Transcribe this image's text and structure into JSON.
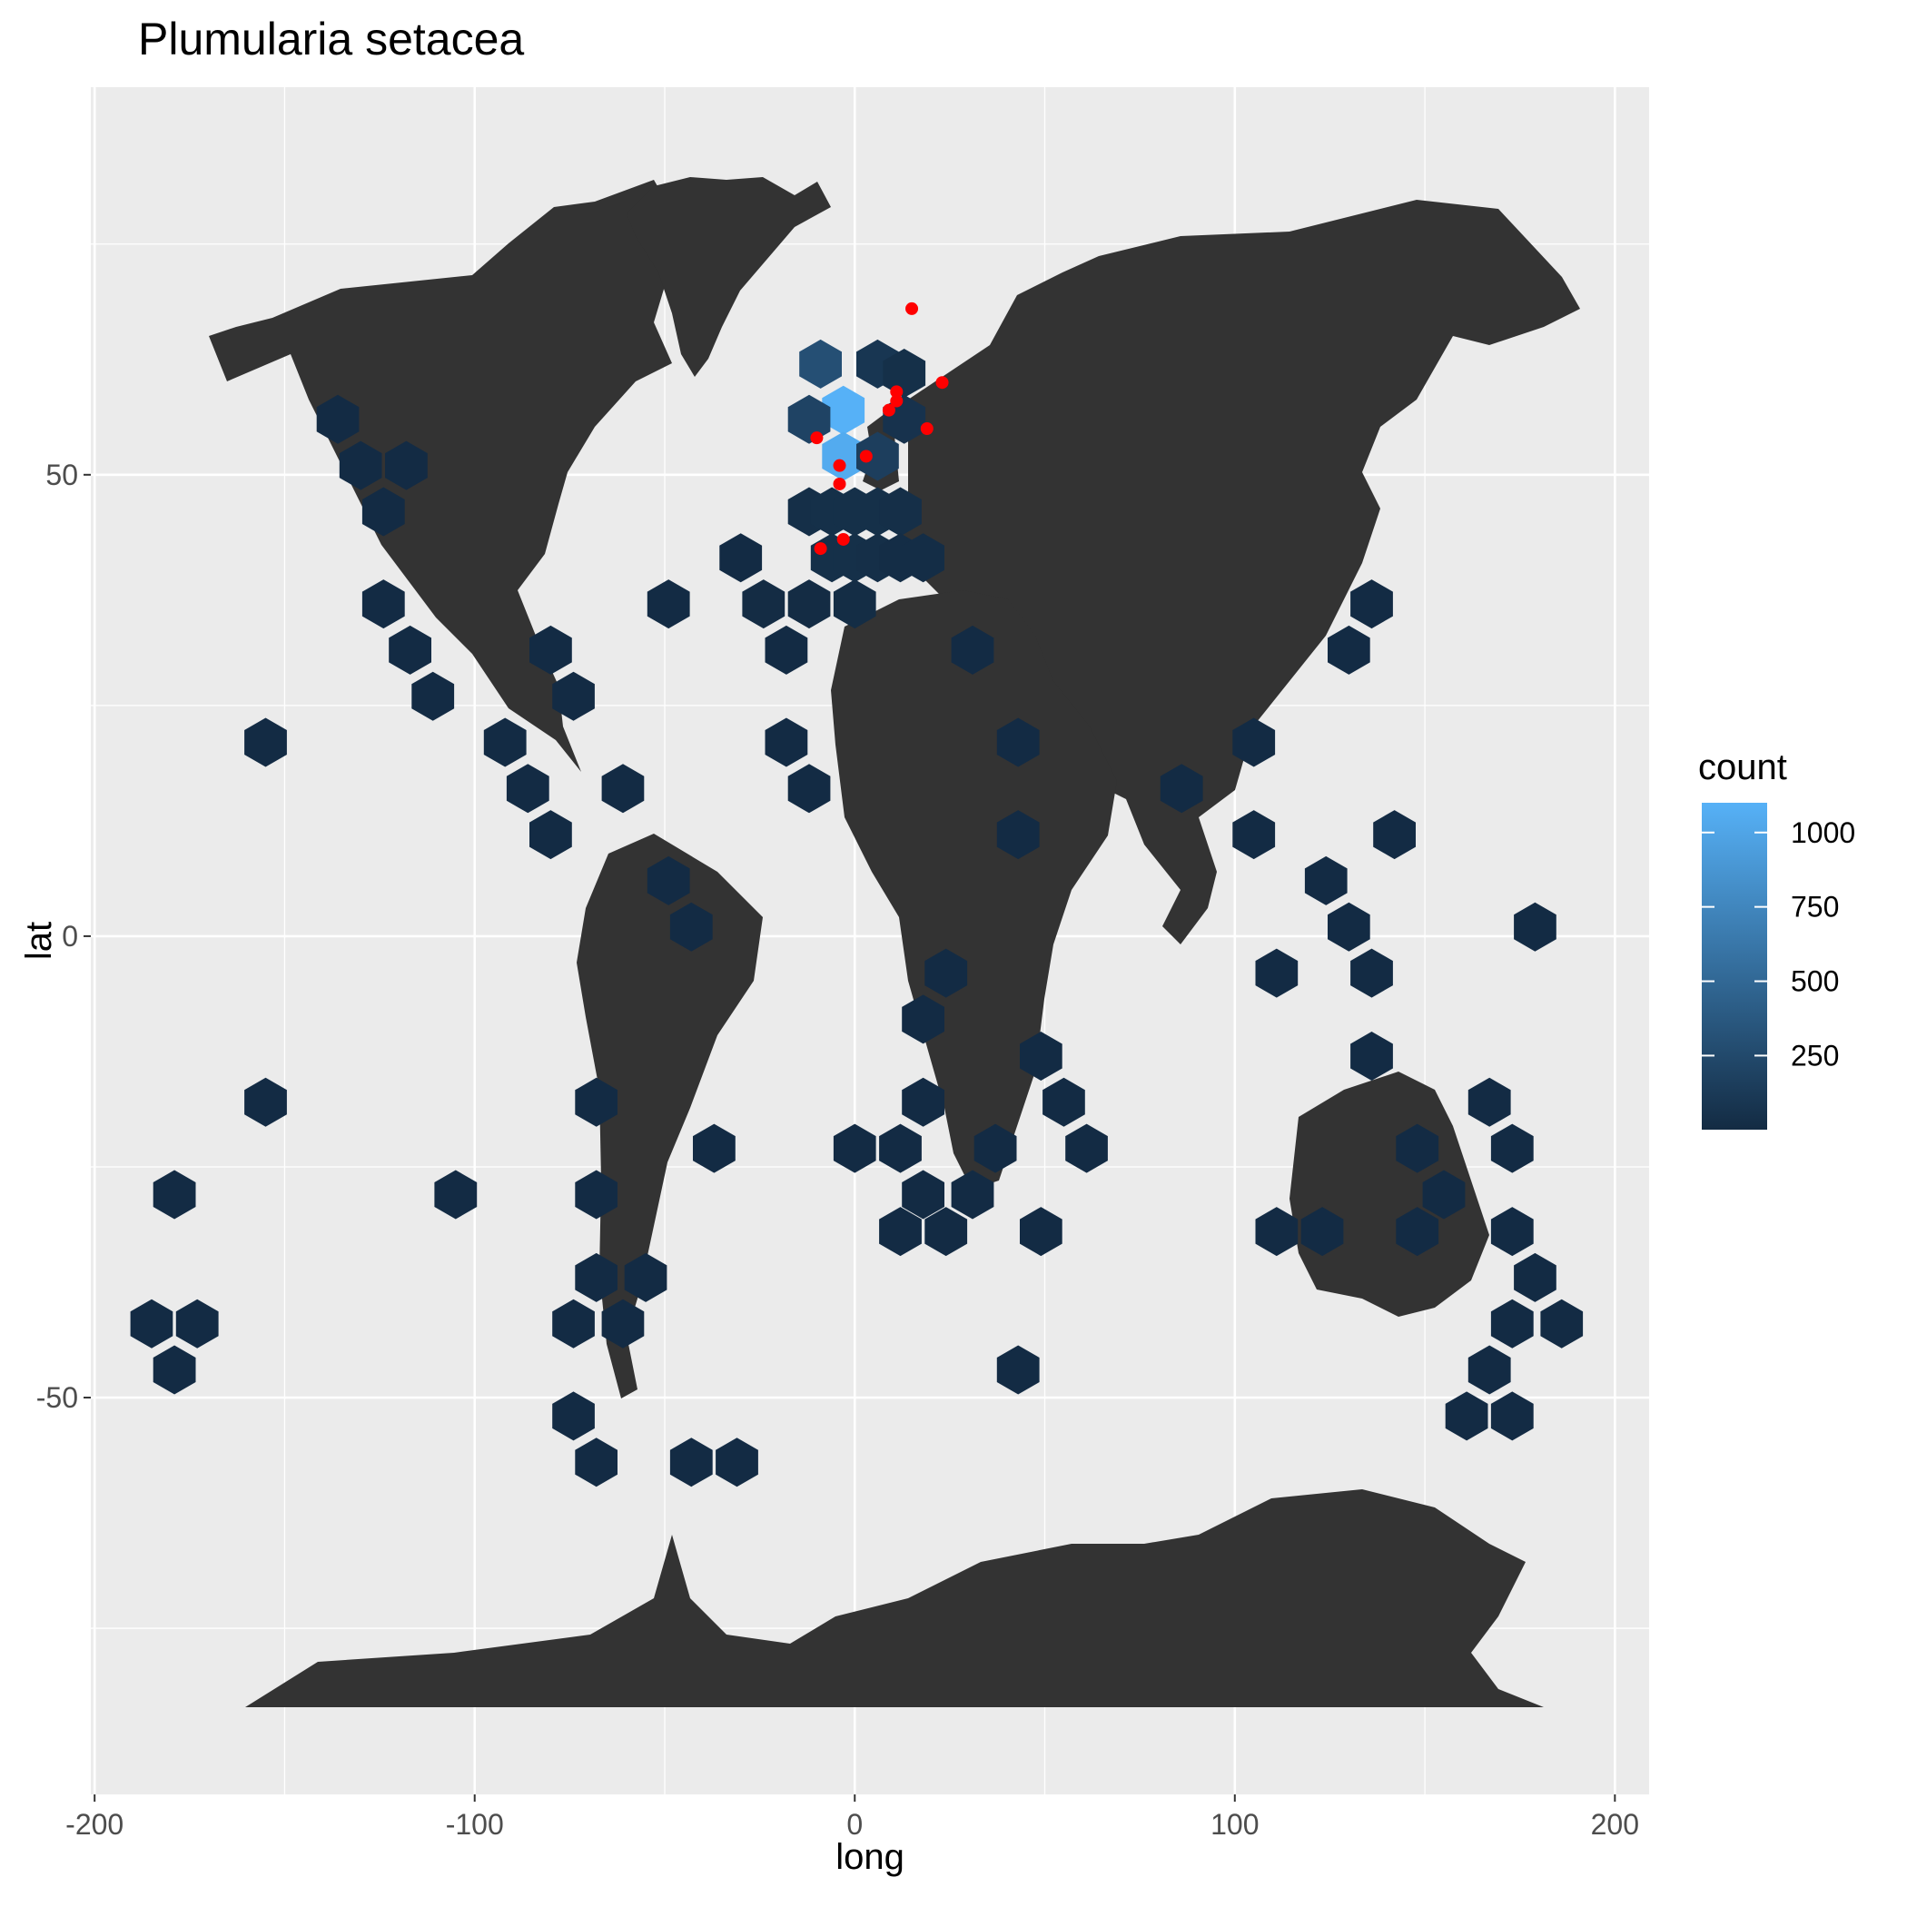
{
  "chart_data": {
    "type": "hexbin",
    "title": "Plumularia setacea",
    "xlabel": "long",
    "ylabel": "lat",
    "xlim": [
      -201,
      209
    ],
    "ylim": [
      -93,
      92
    ],
    "x_ticks": [
      -200,
      -100,
      0,
      100,
      200
    ],
    "x_tick_labels": [
      "-200",
      "-100",
      "0",
      "100",
      "200"
    ],
    "y_ticks": [
      -50,
      0,
      50
    ],
    "y_tick_labels": [
      "-50",
      "0",
      "50"
    ],
    "grid": true,
    "land_color": "#333333",
    "panel_color": "#ebebeb",
    "point_color": "#ff0000",
    "legend": {
      "title": "count",
      "position": "right",
      "breaks": [
        250,
        500,
        750,
        1000
      ],
      "break_labels": [
        "250",
        "500",
        "750",
        "1000"
      ],
      "range": [
        1,
        1100
      ],
      "low_color": "#132b43",
      "high_color": "#56b1f7"
    },
    "hexbins": [
      {
        "long": -3,
        "lat": 57,
        "count": 1100
      },
      {
        "long": -3,
        "lat": 52,
        "count": 1050
      },
      {
        "long": -9,
        "lat": 62,
        "count": 300
      },
      {
        "long": -12,
        "lat": 56,
        "count": 200
      },
      {
        "long": 6,
        "lat": 52,
        "count": 160
      },
      {
        "long": 6,
        "lat": 62,
        "count": 90
      },
      {
        "long": 13,
        "lat": 56,
        "count": 60
      },
      {
        "long": 13,
        "lat": 61,
        "count": 40
      },
      {
        "long": -12,
        "lat": 46,
        "count": 30
      },
      {
        "long": -6,
        "lat": 46,
        "count": 40
      },
      {
        "long": 0,
        "lat": 46,
        "count": 40
      },
      {
        "long": 6,
        "lat": 46,
        "count": 40
      },
      {
        "long": 12,
        "lat": 46,
        "count": 30
      },
      {
        "long": -6,
        "lat": 41,
        "count": 40
      },
      {
        "long": 0,
        "lat": 41,
        "count": 40
      },
      {
        "long": 6,
        "lat": 41,
        "count": 30
      },
      {
        "long": 12,
        "lat": 41,
        "count": 20
      },
      {
        "long": 18,
        "lat": 41,
        "count": 20
      },
      {
        "long": -30,
        "lat": 41,
        "count": 5
      },
      {
        "long": -24,
        "lat": 36,
        "count": 10
      },
      {
        "long": -12,
        "lat": 36,
        "count": 10
      },
      {
        "long": 0,
        "lat": 36,
        "count": 15
      },
      {
        "long": -49,
        "lat": 36,
        "count": 5
      },
      {
        "long": -18,
        "lat": 31,
        "count": 5
      },
      {
        "long": 31,
        "lat": 31,
        "count": 5
      },
      {
        "long": -136,
        "lat": 56,
        "count": 5
      },
      {
        "long": -130,
        "lat": 51,
        "count": 5
      },
      {
        "long": -118,
        "lat": 51,
        "count": 5
      },
      {
        "long": -124,
        "lat": 46,
        "count": 5
      },
      {
        "long": -124,
        "lat": 36,
        "count": 5
      },
      {
        "long": -117,
        "lat": 31,
        "count": 5
      },
      {
        "long": -111,
        "lat": 26,
        "count": 5
      },
      {
        "long": -80,
        "lat": 31,
        "count": 5
      },
      {
        "long": -74,
        "lat": 26,
        "count": 5
      },
      {
        "long": -155,
        "lat": 21,
        "count": 5
      },
      {
        "long": -92,
        "lat": 21,
        "count": 5
      },
      {
        "long": -86,
        "lat": 16,
        "count": 5
      },
      {
        "long": -80,
        "lat": 11,
        "count": 5
      },
      {
        "long": -61,
        "lat": 16,
        "count": 5
      },
      {
        "long": -49,
        "lat": 6,
        "count": 5
      },
      {
        "long": -43,
        "lat": 1,
        "count": 5
      },
      {
        "long": -18,
        "lat": 21,
        "count": 5
      },
      {
        "long": -12,
        "lat": 16,
        "count": 5
      },
      {
        "long": 43,
        "lat": 21,
        "count": 5
      },
      {
        "long": 43,
        "lat": 11,
        "count": 5
      },
      {
        "long": 86,
        "lat": 16,
        "count": 5
      },
      {
        "long": 105,
        "lat": 21,
        "count": 5
      },
      {
        "long": 105,
        "lat": 11,
        "count": 5
      },
      {
        "long": 136,
        "lat": 36,
        "count": 5
      },
      {
        "long": 130,
        "lat": 31,
        "count": 5
      },
      {
        "long": 142,
        "lat": 11,
        "count": 5
      },
      {
        "long": 124,
        "lat": 6,
        "count": 5
      },
      {
        "long": 130,
        "lat": 1,
        "count": 5
      },
      {
        "long": 136,
        "lat": -4,
        "count": 5
      },
      {
        "long": 111,
        "lat": -4,
        "count": 5
      },
      {
        "long": 179,
        "lat": 1,
        "count": 5
      },
      {
        "long": 24,
        "lat": -4,
        "count": 5
      },
      {
        "long": 18,
        "lat": -9,
        "count": 5
      },
      {
        "long": 136,
        "lat": -13,
        "count": 5
      },
      {
        "long": 49,
        "lat": -13,
        "count": 5
      },
      {
        "long": 55,
        "lat": -18,
        "count": 5
      },
      {
        "long": 61,
        "lat": -23,
        "count": 5
      },
      {
        "long": -155,
        "lat": -18,
        "count": 5
      },
      {
        "long": -68,
        "lat": -18,
        "count": 5
      },
      {
        "long": 18,
        "lat": -18,
        "count": 5
      },
      {
        "long": 0,
        "lat": -23,
        "count": 5
      },
      {
        "long": 12,
        "lat": -23,
        "count": 5
      },
      {
        "long": 37,
        "lat": -23,
        "count": 5
      },
      {
        "long": -37,
        "lat": -23,
        "count": 5
      },
      {
        "long": 167,
        "lat": -18,
        "count": 5
      },
      {
        "long": 173,
        "lat": -23,
        "count": 5
      },
      {
        "long": 148,
        "lat": -23,
        "count": 5
      },
      {
        "long": 155,
        "lat": -28,
        "count": 5
      },
      {
        "long": -179,
        "lat": -28,
        "count": 5
      },
      {
        "long": -105,
        "lat": -28,
        "count": 5
      },
      {
        "long": -68,
        "lat": -28,
        "count": 5
      },
      {
        "long": 18,
        "lat": -28,
        "count": 5
      },
      {
        "long": 31,
        "lat": -28,
        "count": 5
      },
      {
        "long": 12,
        "lat": -32,
        "count": 5
      },
      {
        "long": 24,
        "lat": -32,
        "count": 5
      },
      {
        "long": 49,
        "lat": -32,
        "count": 5
      },
      {
        "long": 111,
        "lat": -32,
        "count": 5
      },
      {
        "long": 123,
        "lat": -32,
        "count": 5
      },
      {
        "long": 148,
        "lat": -32,
        "count": 5
      },
      {
        "long": 173,
        "lat": -32,
        "count": 5
      },
      {
        "long": -68,
        "lat": -37,
        "count": 5
      },
      {
        "long": -55,
        "lat": -37,
        "count": 5
      },
      {
        "long": 179,
        "lat": -37,
        "count": 5
      },
      {
        "long": -185,
        "lat": -42,
        "count": 5
      },
      {
        "long": -173,
        "lat": -42,
        "count": 5
      },
      {
        "long": -74,
        "lat": -42,
        "count": 5
      },
      {
        "long": -61,
        "lat": -42,
        "count": 5
      },
      {
        "long": 173,
        "lat": -42,
        "count": 5
      },
      {
        "long": 186,
        "lat": -42,
        "count": 5
      },
      {
        "long": -179,
        "lat": -47,
        "count": 5
      },
      {
        "long": 43,
        "lat": -47,
        "count": 5
      },
      {
        "long": 167,
        "lat": -47,
        "count": 5
      },
      {
        "long": -74,
        "lat": -52,
        "count": 5
      },
      {
        "long": 161,
        "lat": -52,
        "count": 5
      },
      {
        "long": 173,
        "lat": -52,
        "count": 5
      },
      {
        "long": -68,
        "lat": -57,
        "count": 5
      },
      {
        "long": -43,
        "lat": -57,
        "count": 5
      },
      {
        "long": -31,
        "lat": -57,
        "count": 5
      }
    ],
    "points": [
      {
        "long": 15,
        "lat": 68
      },
      {
        "long": 11,
        "lat": 59
      },
      {
        "long": 11,
        "lat": 58
      },
      {
        "long": 23,
        "lat": 60
      },
      {
        "long": 9,
        "lat": 57
      },
      {
        "long": 19,
        "lat": 55
      },
      {
        "long": -10,
        "lat": 54
      },
      {
        "long": 3,
        "lat": 52
      },
      {
        "long": -4,
        "lat": 51
      },
      {
        "long": -4,
        "lat": 49
      },
      {
        "long": -3,
        "lat": 43
      },
      {
        "long": -9,
        "lat": 42
      }
    ]
  }
}
